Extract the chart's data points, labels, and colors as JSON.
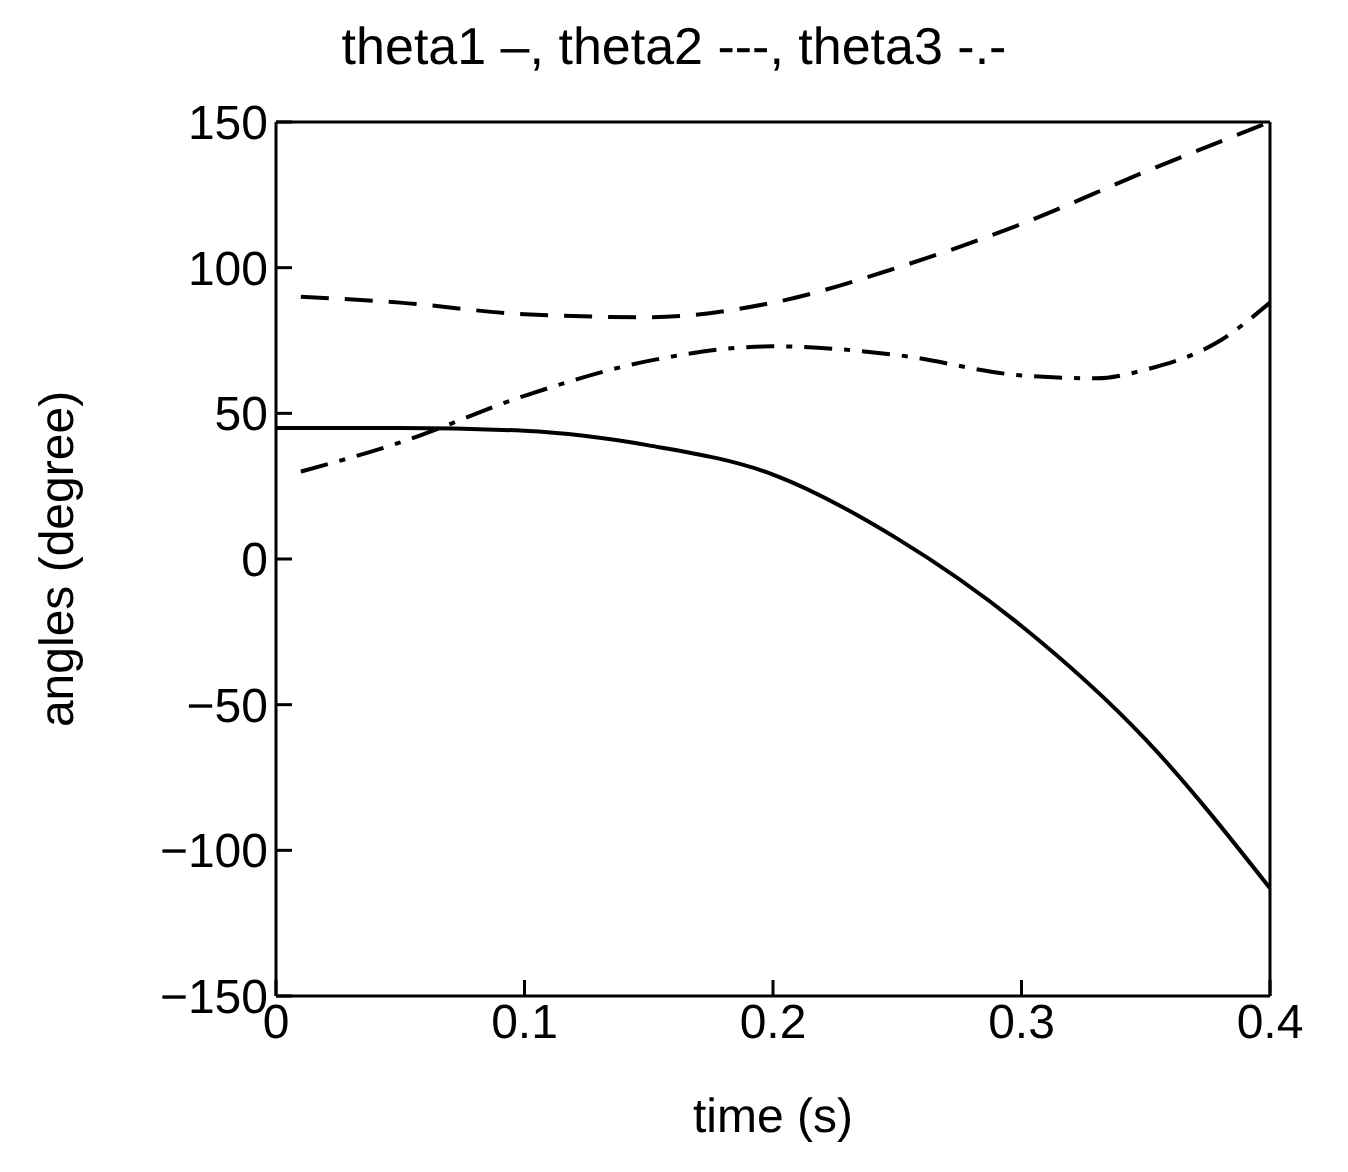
{
  "chart_data": {
    "type": "line",
    "title": "theta1 –, theta2 ---, theta3 -.-",
    "xlabel": "time (s)",
    "ylabel": "angles (degree)",
    "xlim": [
      0,
      0.4
    ],
    "xticks": [
      0,
      0.1,
      0.2,
      0.3,
      0.4
    ],
    "ylim": [
      -150,
      150
    ],
    "yticks": [
      -150,
      -100,
      -50,
      0,
      50,
      100,
      150
    ],
    "grid": false,
    "legend": false,
    "marker": "none",
    "series": [
      {
        "color": "#000000",
        "line_style": "solid",
        "x": [
          0,
          0.05,
          0.1,
          0.15,
          0.2,
          0.25,
          0.3,
          0.35,
          0.4
        ],
        "values": [
          45,
          45,
          44,
          39,
          29,
          7,
          -23,
          -62,
          -113
        ]
      },
      {
        "color": "#000000",
        "line_style": "dashed",
        "x": [
          0.01,
          0.05,
          0.1,
          0.15,
          0.2,
          0.25,
          0.3,
          0.35,
          0.4
        ],
        "values": [
          90,
          88,
          84,
          83,
          88,
          100,
          115,
          133,
          150
        ]
      },
      {
        "color": "#000000",
        "line_style": "dashdot",
        "x": [
          0.01,
          0.05,
          0.1,
          0.15,
          0.2,
          0.25,
          0.3,
          0.33,
          0.35,
          0.38,
          0.4
        ],
        "values": [
          30,
          40,
          56,
          68,
          73,
          70,
          63,
          62,
          65,
          75,
          88
        ]
      }
    ]
  }
}
